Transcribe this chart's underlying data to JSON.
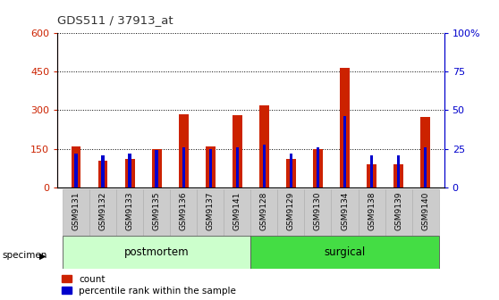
{
  "title": "GDS511 / 37913_at",
  "categories": [
    "GSM9131",
    "GSM9132",
    "GSM9133",
    "GSM9135",
    "GSM9136",
    "GSM9137",
    "GSM9141",
    "GSM9128",
    "GSM9129",
    "GSM9130",
    "GSM9134",
    "GSM9138",
    "GSM9139",
    "GSM9140"
  ],
  "count_values": [
    160,
    105,
    110,
    148,
    285,
    160,
    280,
    320,
    110,
    150,
    465,
    90,
    90,
    275
  ],
  "percentile_values": [
    22,
    21,
    22,
    24,
    26,
    25,
    26,
    28,
    22,
    26,
    46,
    21,
    21,
    26
  ],
  "bar_color": "#cc2200",
  "percentile_color": "#0000cc",
  "group1_label": "postmortem",
  "group2_label": "surgical",
  "group1_color": "#ccffcc",
  "group2_color": "#44dd44",
  "ylim_left": [
    0,
    600
  ],
  "ylim_right": [
    0,
    100
  ],
  "yticks_left": [
    0,
    150,
    300,
    450,
    600
  ],
  "yticks_right": [
    0,
    25,
    50,
    75,
    100
  ],
  "legend_count": "count",
  "legend_percentile": "percentile rank within the sample",
  "title_color": "#333333",
  "left_axis_color": "#cc2200",
  "right_axis_color": "#0000cc",
  "red_bar_width": 0.35,
  "blue_bar_width": 0.12,
  "n_postmortem": 7,
  "n_surgical": 7
}
